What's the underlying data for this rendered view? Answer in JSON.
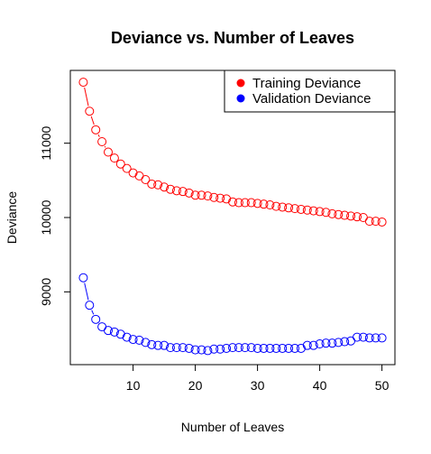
{
  "chart_data": {
    "type": "line",
    "title": "Deviance vs. Number of Leaves",
    "xlabel": "Number of Leaves",
    "ylabel": "Deviance",
    "xlim": [
      2,
      50
    ],
    "ylim": [
      8100,
      11900
    ],
    "xticks": [
      10,
      20,
      30,
      40,
      50
    ],
    "yticks": [
      9000,
      10000,
      11000
    ],
    "grid": false,
    "legend_position": "top-right",
    "x": [
      2,
      3,
      4,
      5,
      6,
      7,
      8,
      9,
      10,
      11,
      12,
      13,
      14,
      15,
      16,
      17,
      18,
      19,
      20,
      21,
      22,
      23,
      24,
      25,
      26,
      27,
      28,
      29,
      30,
      31,
      32,
      33,
      34,
      35,
      36,
      37,
      38,
      39,
      40,
      41,
      42,
      43,
      44,
      45,
      46,
      47,
      48,
      49,
      50
    ],
    "series": [
      {
        "name": "Training Deviance",
        "color": "#ff0000",
        "values": [
          11820,
          11430,
          11180,
          11020,
          10880,
          10800,
          10720,
          10660,
          10600,
          10560,
          10510,
          10450,
          10440,
          10410,
          10380,
          10360,
          10350,
          10330,
          10300,
          10300,
          10290,
          10270,
          10260,
          10250,
          10210,
          10200,
          10200,
          10200,
          10190,
          10180,
          10170,
          10150,
          10140,
          10130,
          10120,
          10110,
          10100,
          10090,
          10080,
          10070,
          10050,
          10040,
          10030,
          10020,
          10010,
          10000,
          9950,
          9950,
          9940
        ]
      },
      {
        "name": "Validation Deviance",
        "color": "#0000ff",
        "values": [
          9190,
          8820,
          8630,
          8530,
          8480,
          8460,
          8430,
          8390,
          8360,
          8350,
          8320,
          8290,
          8280,
          8280,
          8250,
          8250,
          8250,
          8240,
          8220,
          8220,
          8210,
          8230,
          8230,
          8240,
          8250,
          8250,
          8250,
          8250,
          8240,
          8240,
          8240,
          8240,
          8240,
          8240,
          8240,
          8240,
          8280,
          8280,
          8300,
          8310,
          8310,
          8320,
          8330,
          8340,
          8390,
          8390,
          8380,
          8380,
          8380
        ]
      }
    ]
  }
}
